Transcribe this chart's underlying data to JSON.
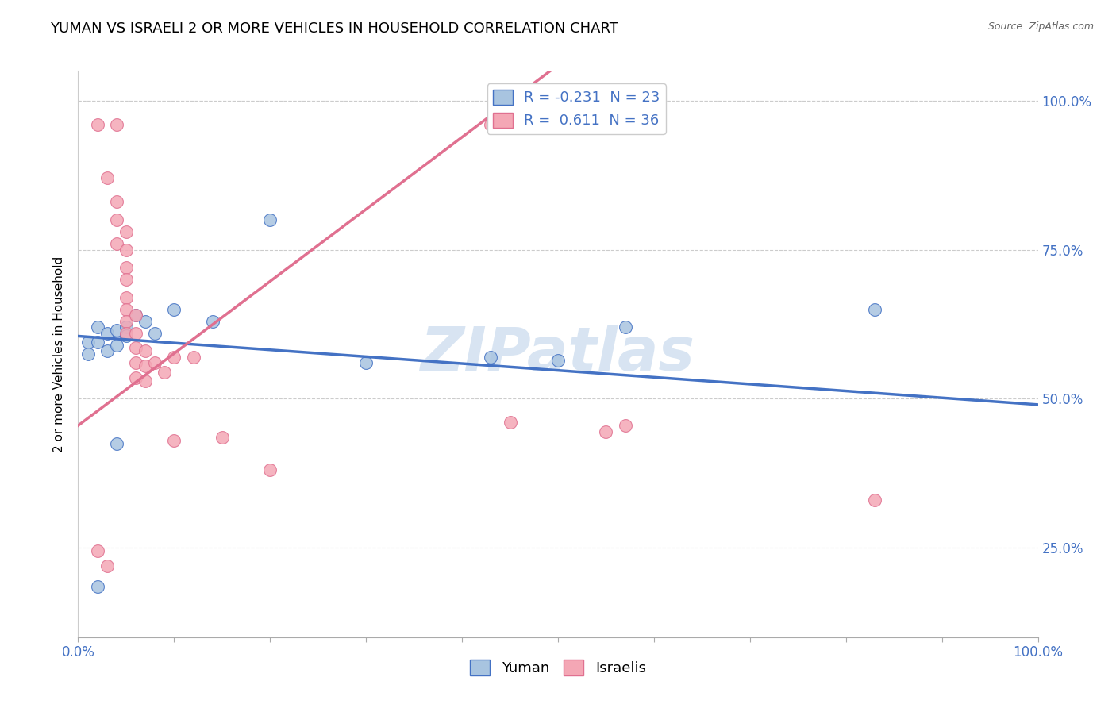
{
  "title": "YUMAN VS ISRAELI 2 OR MORE VEHICLES IN HOUSEHOLD CORRELATION CHART",
  "source": "Source: ZipAtlas.com",
  "ylabel": "2 or more Vehicles in Household",
  "watermark": "ZIPatlas",
  "yuman_scatter": [
    [
      0.01,
      0.595
    ],
    [
      0.01,
      0.575
    ],
    [
      0.02,
      0.62
    ],
    [
      0.02,
      0.595
    ],
    [
      0.03,
      0.61
    ],
    [
      0.03,
      0.58
    ],
    [
      0.04,
      0.615
    ],
    [
      0.04,
      0.59
    ],
    [
      0.05,
      0.62
    ],
    [
      0.05,
      0.605
    ],
    [
      0.06,
      0.64
    ],
    [
      0.07,
      0.63
    ],
    [
      0.08,
      0.61
    ],
    [
      0.1,
      0.65
    ],
    [
      0.14,
      0.63
    ],
    [
      0.2,
      0.8
    ],
    [
      0.3,
      0.56
    ],
    [
      0.43,
      0.57
    ],
    [
      0.5,
      0.565
    ],
    [
      0.57,
      0.62
    ],
    [
      0.83,
      0.65
    ],
    [
      0.04,
      0.425
    ],
    [
      0.02,
      0.185
    ]
  ],
  "israelis_scatter": [
    [
      0.02,
      0.96
    ],
    [
      0.04,
      0.96
    ],
    [
      0.03,
      0.87
    ],
    [
      0.04,
      0.83
    ],
    [
      0.04,
      0.8
    ],
    [
      0.04,
      0.76
    ],
    [
      0.05,
      0.78
    ],
    [
      0.05,
      0.75
    ],
    [
      0.05,
      0.72
    ],
    [
      0.05,
      0.7
    ],
    [
      0.05,
      0.67
    ],
    [
      0.05,
      0.65
    ],
    [
      0.05,
      0.63
    ],
    [
      0.05,
      0.61
    ],
    [
      0.06,
      0.64
    ],
    [
      0.06,
      0.61
    ],
    [
      0.06,
      0.585
    ],
    [
      0.06,
      0.56
    ],
    [
      0.06,
      0.535
    ],
    [
      0.07,
      0.58
    ],
    [
      0.07,
      0.555
    ],
    [
      0.07,
      0.53
    ],
    [
      0.08,
      0.56
    ],
    [
      0.09,
      0.545
    ],
    [
      0.1,
      0.57
    ],
    [
      0.12,
      0.57
    ],
    [
      0.15,
      0.435
    ],
    [
      0.2,
      0.38
    ],
    [
      0.1,
      0.43
    ],
    [
      0.43,
      0.96
    ],
    [
      0.45,
      0.46
    ],
    [
      0.55,
      0.445
    ],
    [
      0.57,
      0.455
    ],
    [
      0.83,
      0.33
    ],
    [
      0.02,
      0.245
    ],
    [
      0.03,
      0.22
    ]
  ],
  "yuman_line": [
    0.0,
    0.605,
    1.0,
    0.49
  ],
  "israelis_line": [
    0.0,
    0.455,
    0.43,
    0.975
  ],
  "yuman_R": -0.231,
  "yuman_N": 23,
  "israelis_R": 0.611,
  "israelis_N": 36,
  "xlim": [
    0.0,
    1.0
  ],
  "ylim": [
    0.1,
    1.05
  ],
  "yuman_color": "#a8c4e0",
  "israelis_color": "#f4a7b5",
  "yuman_line_color": "#4472c4",
  "israelis_line_color": "#e07090",
  "legend_text_color": "#4472c4",
  "title_fontsize": 13,
  "axis_label_fontsize": 11,
  "tick_label_color": "#4472c4",
  "background_color": "#ffffff",
  "grid_color": "#cccccc",
  "yticks": [
    0.25,
    0.5,
    0.75,
    1.0
  ],
  "ytick_labels": [
    "25.0%",
    "50.0%",
    "75.0%",
    "100.0%"
  ],
  "xticks": [
    0.0,
    0.1,
    0.2,
    0.3,
    0.4,
    0.5,
    0.6,
    0.7,
    0.8,
    0.9,
    1.0
  ],
  "xtick_labels_show": [
    "0.0%",
    "100.0%"
  ]
}
